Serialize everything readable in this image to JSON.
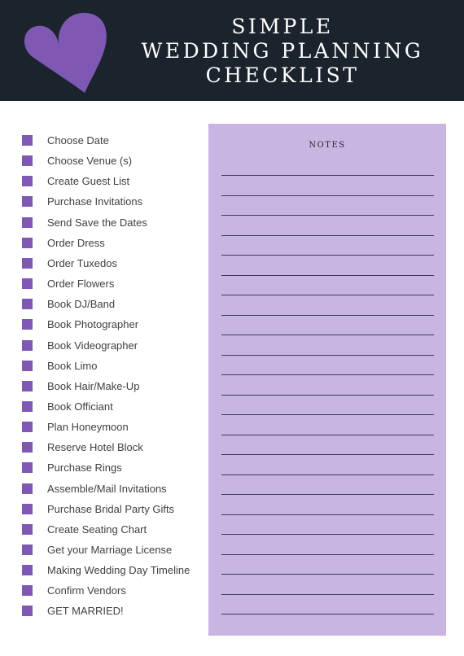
{
  "header": {
    "title_line1": "SIMPLE",
    "title_line2": "WEDDING PLANNING",
    "title_line3": "CHECKLIST",
    "heart_icon": "heart-icon",
    "background_color": "#1b242d",
    "heart_color": "#7e58b2"
  },
  "checklist": {
    "items": [
      {
        "label": "Choose Date"
      },
      {
        "label": "Choose Venue (s)"
      },
      {
        "label": "Create Guest List"
      },
      {
        "label": "Purchase Invitations"
      },
      {
        "label": "Send Save the Dates"
      },
      {
        "label": "Order Dress"
      },
      {
        "label": "Order Tuxedos"
      },
      {
        "label": "Order Flowers"
      },
      {
        "label": "Book DJ/Band"
      },
      {
        "label": "Book Photographer"
      },
      {
        "label": "Book Videographer"
      },
      {
        "label": "Book Limo"
      },
      {
        "label": "Book Hair/Make-Up"
      },
      {
        "label": "Book Officiant"
      },
      {
        "label": "Plan Honeymoon"
      },
      {
        "label": "Reserve Hotel Block"
      },
      {
        "label": "Purchase Rings"
      },
      {
        "label": "Assemble/Mail Invitations"
      },
      {
        "label": "Purchase Bridal Party Gifts"
      },
      {
        "label": "Create Seating Chart"
      },
      {
        "label": "Get your Marriage License"
      },
      {
        "label": "Making Wedding Day Timeline"
      },
      {
        "label": "Confirm Vendors"
      },
      {
        "label": "GET MARRIED!"
      }
    ],
    "checkbox_color": "#7e58b2"
  },
  "notes": {
    "title": "NOTES",
    "background_color": "#c8b5e2"
  }
}
